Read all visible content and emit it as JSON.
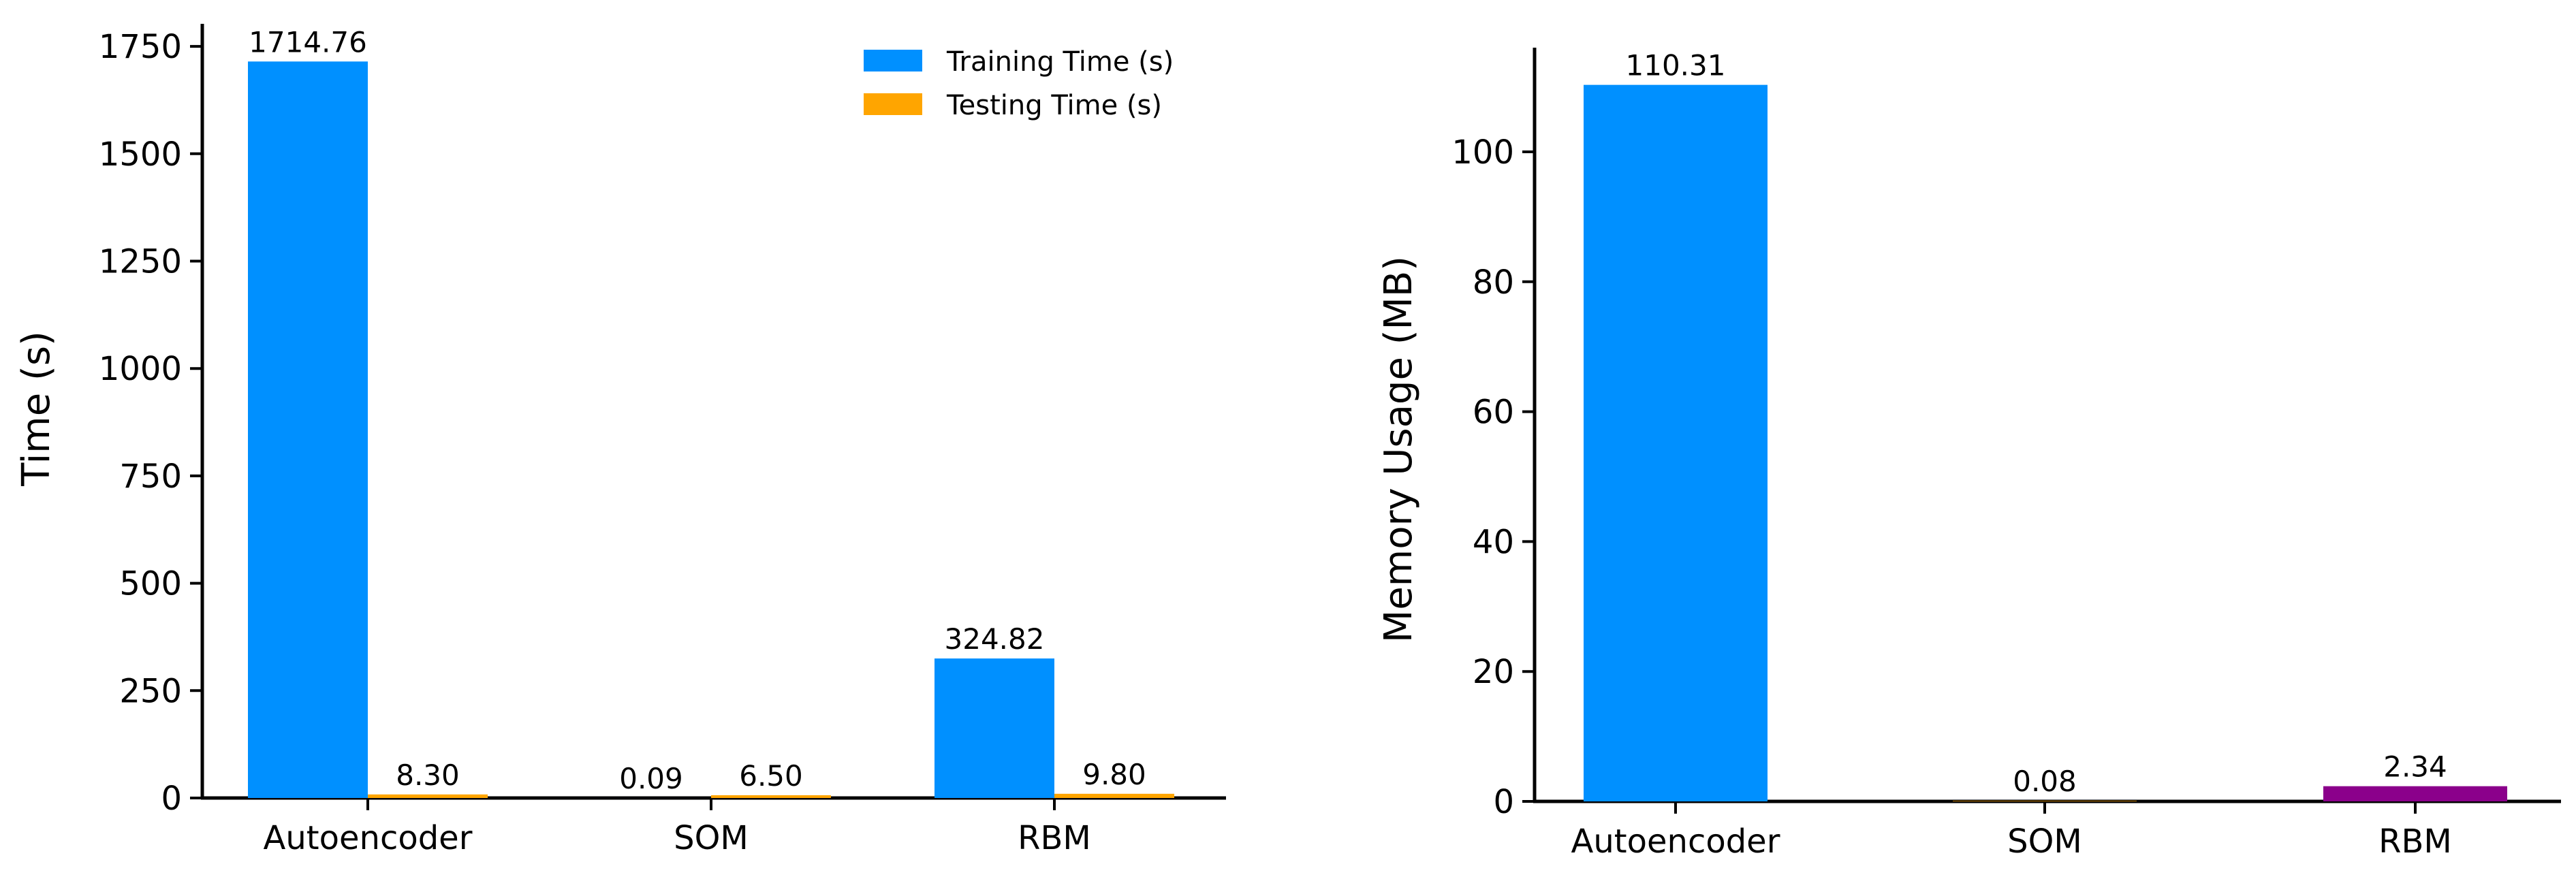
{
  "chart_data": [
    {
      "type": "bar",
      "categories": [
        "Autoencoder",
        "SOM",
        "RBM"
      ],
      "series": [
        {
          "name": "Training Time (s)",
          "values": [
            1714.76,
            0.09,
            324.82
          ],
          "labels": [
            "1714.76",
            "0.09",
            "324.82"
          ],
          "color": "#0090FF"
        },
        {
          "name": "Testing Time (s)",
          "values": [
            8.3,
            6.5,
            9.8
          ],
          "labels": [
            "8.30",
            "6.50",
            "9.80"
          ],
          "color": "#FFA500"
        }
      ],
      "title": "",
      "xlabel": "",
      "ylabel": "Time (s)",
      "ylim": [
        0,
        1800
      ],
      "yticks": [
        0,
        250,
        500,
        750,
        1000,
        1250,
        1500,
        1750
      ],
      "ytick_labels": [
        "0",
        "250",
        "500",
        "750",
        "1000",
        "1250",
        "1500",
        "1750"
      ],
      "grid": false,
      "legend": "top-right"
    },
    {
      "type": "bar",
      "categories": [
        "Autoencoder",
        "SOM",
        "RBM"
      ],
      "values": [
        110.31,
        0.08,
        2.34
      ],
      "value_labels": [
        "110.31",
        "0.08",
        "2.34"
      ],
      "colors": [
        "#0090FF",
        "#FFA500",
        "#8B008B"
      ],
      "title": "",
      "xlabel": "",
      "ylabel": "Memory Usage (MB)",
      "ylim": [
        0,
        115
      ],
      "yticks": [
        0,
        20,
        40,
        60,
        80,
        100
      ],
      "ytick_labels": [
        "0",
        "20",
        "40",
        "60",
        "80",
        "100"
      ],
      "grid": false
    }
  ]
}
